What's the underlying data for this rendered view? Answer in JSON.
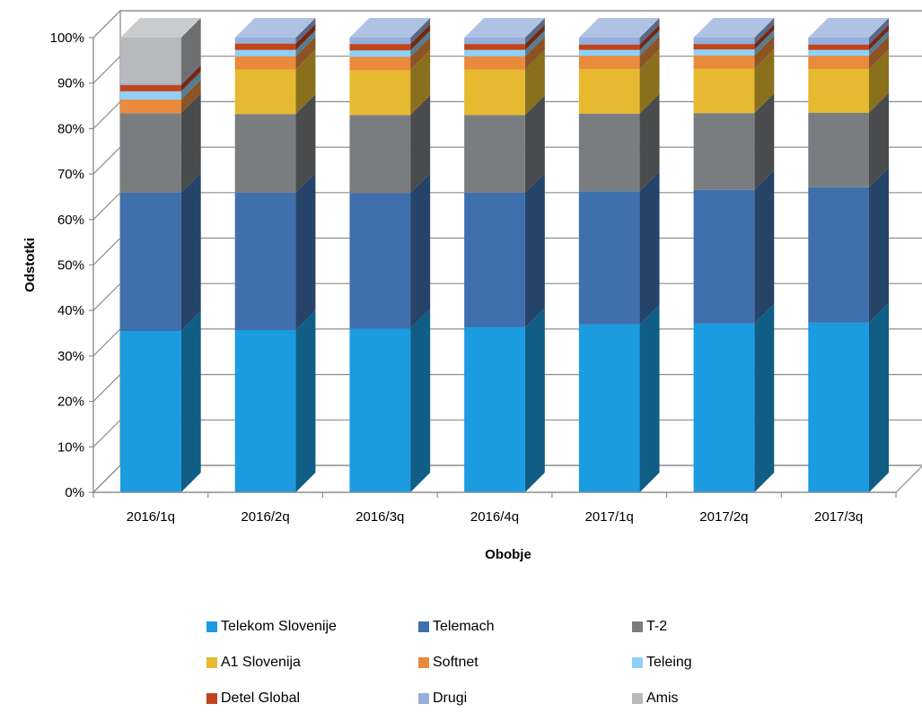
{
  "chart_data": {
    "type": "bar",
    "stacked": "percent",
    "style": "3d-column",
    "title": "",
    "xlabel": "Obobje",
    "ylabel": "Odstotki",
    "ylim": [
      0,
      100
    ],
    "yticks": [
      "0%",
      "10%",
      "20%",
      "30%",
      "40%",
      "50%",
      "60%",
      "70%",
      "80%",
      "90%",
      "100%"
    ],
    "grid": true,
    "legend_position": "bottom",
    "categories": [
      "2016/1q",
      "2016/2q",
      "2016/3q",
      "2016/4q",
      "2017/1q",
      "2017/2q",
      "2017/3q"
    ],
    "series": [
      {
        "name": "Telekom Slovenije",
        "color": "#1b9be0",
        "values": [
          35.5,
          35.7,
          36.0,
          36.3,
          36.9,
          37.1,
          37.3
        ]
      },
      {
        "name": "Telemach",
        "color": "#3f6fad",
        "values": [
          30.4,
          30.2,
          29.8,
          29.6,
          29.3,
          29.4,
          29.8
        ]
      },
      {
        "name": "T-2",
        "color": "#7a7d80",
        "values": [
          17.5,
          17.3,
          17.2,
          17.1,
          17.1,
          16.9,
          16.4
        ]
      },
      {
        "name": "A1 Slovenija",
        "color": "#e6b930",
        "values": [
          0.0,
          9.8,
          9.9,
          10.0,
          9.8,
          9.8,
          9.6
        ]
      },
      {
        "name": "Softnet",
        "color": "#ea8a3d",
        "values": [
          3.0,
          2.9,
          2.9,
          2.9,
          2.9,
          2.9,
          2.9
        ]
      },
      {
        "name": "Teleing",
        "color": "#8fd0f5",
        "values": [
          1.8,
          1.4,
          1.4,
          1.4,
          1.3,
          1.3,
          1.3
        ]
      },
      {
        "name": "Detel Global",
        "color": "#c0441c",
        "values": [
          1.4,
          1.4,
          1.4,
          1.3,
          1.2,
          1.2,
          1.2
        ]
      },
      {
        "name": "Drugi",
        "color": "#96aedb",
        "values": [
          0.4,
          1.3,
          1.4,
          1.4,
          1.5,
          1.4,
          1.5
        ]
      },
      {
        "name": "Amis",
        "color": "#b8b9bc",
        "values": [
          10.0,
          0.0,
          0.0,
          0.0,
          0.0,
          0.0,
          0.0
        ]
      }
    ]
  }
}
